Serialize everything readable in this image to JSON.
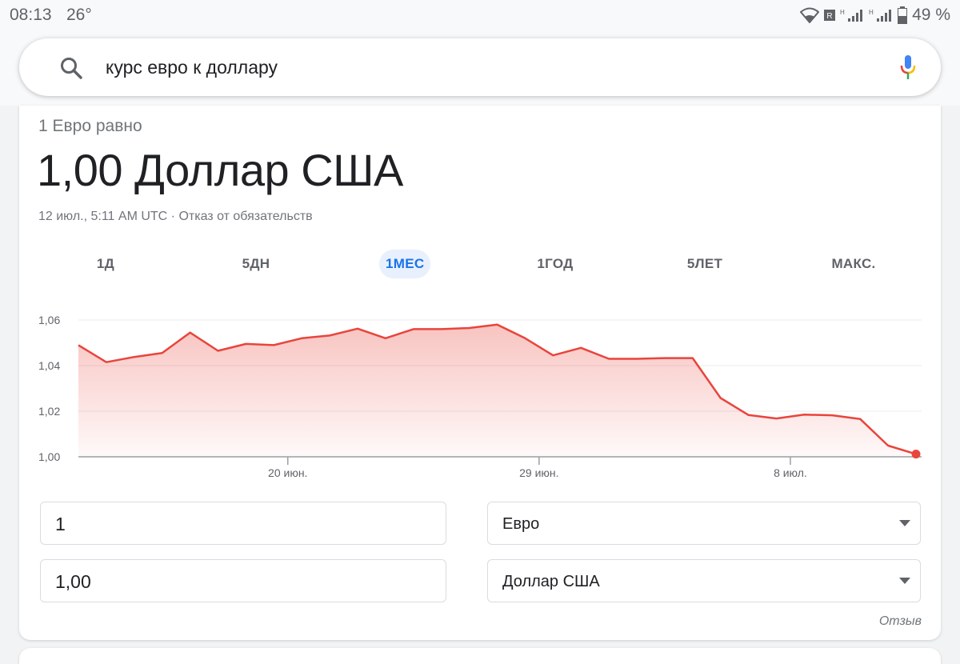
{
  "status_bar": {
    "time": "08:13",
    "temperature": "26°",
    "battery": "49 %",
    "icons": [
      "wifi-icon",
      "roaming-icon",
      "signal-icon",
      "signal-icon",
      "battery-icon"
    ]
  },
  "search": {
    "query": "курс евро к доллару"
  },
  "converter": {
    "equal_label": "1 Евро равно",
    "result": "1,00 Доллар США",
    "meta": "12 июл., 5:11 AM UTC · Отказ от обязательств"
  },
  "tabs": [
    {
      "label": "1Д",
      "active": false
    },
    {
      "label": "5ДН",
      "active": false
    },
    {
      "label": "1МЕС",
      "active": true
    },
    {
      "label": "1ГОД",
      "active": false
    },
    {
      "label": "5ЛЕТ",
      "active": false
    },
    {
      "label": "МАКС.",
      "active": false
    }
  ],
  "inputs": {
    "from_amount": "1",
    "to_amount": "1,00",
    "from_currency": "Евро",
    "to_currency": "Доллар США"
  },
  "feedback": "Отзыв",
  "colors": {
    "accent": "#1a73e8",
    "line": "#e8453c"
  },
  "chart_data": {
    "type": "area",
    "y_ticks": [
      "1,06",
      "1,04",
      "1,02",
      "1,00"
    ],
    "ylim": [
      1.0,
      1.06
    ],
    "x_ticks": [
      {
        "label": "20 июн.",
        "index": 7.5
      },
      {
        "label": "29 июн.",
        "index": 16.5
      },
      {
        "label": "8 июл.",
        "index": 25.5
      }
    ],
    "values": [
      1.049,
      1.0415,
      1.0438,
      1.0455,
      1.0545,
      1.0465,
      1.0495,
      1.049,
      1.052,
      1.0532,
      1.0562,
      1.052,
      1.056,
      1.056,
      1.0565,
      1.058,
      1.052,
      1.0445,
      1.0478,
      1.043,
      1.043,
      1.0433,
      1.0433,
      1.0258,
      1.0183,
      1.0168,
      1.0185,
      1.0182,
      1.0166,
      1.0049,
      1.0012
    ]
  }
}
